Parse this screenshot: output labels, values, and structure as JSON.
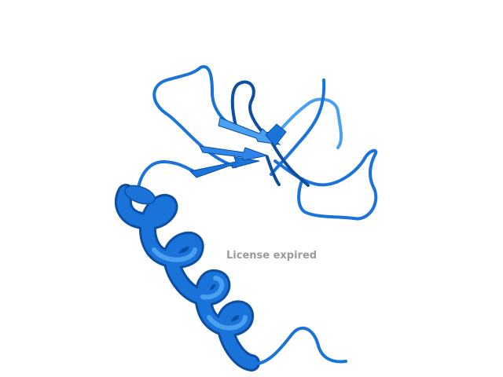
{
  "viewer": {
    "watermark_text": "License expired",
    "watermark_color": "#9a9a9a",
    "background_color": "#ffffff"
  },
  "structure": {
    "representation": "cartoon",
    "elements": [
      "alpha-helix",
      "beta-sheet",
      "loop"
    ],
    "colors": {
      "main": "#1a73d9",
      "dark": "#0d4ea0",
      "light": "#4aa0f0"
    }
  }
}
